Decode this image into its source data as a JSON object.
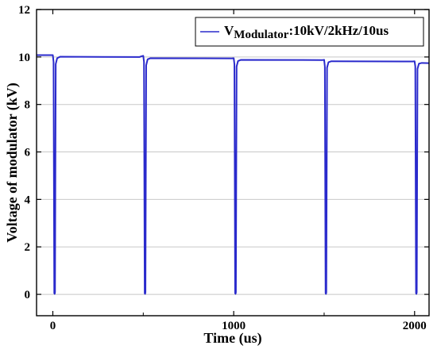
{
  "chart_data": {
    "type": "line",
    "title": "",
    "xlabel": "Time (us)",
    "ylabel": "Voltage of modulator (kV)",
    "xlim": [
      -90,
      2080
    ],
    "ylim": [
      -0.9,
      12
    ],
    "xticks": [
      0,
      1000,
      2000
    ],
    "yticks": [
      0,
      2,
      4,
      6,
      8,
      10,
      12
    ],
    "grid": "horizontal",
    "legend_position": "top-right",
    "legend": {
      "main": "V",
      "subscript": "Modulator",
      "suffix": ":10kV/2kHz/10us"
    },
    "colors": {
      "series": "#2a2acc",
      "grid": "#c8c8c8",
      "axis": "#000000"
    },
    "series": [
      {
        "name": "VModulator:10kV/2kHz/10us",
        "points": [
          [
            -90,
            10.08
          ],
          [
            0,
            10.08
          ],
          [
            4,
            9.8
          ],
          [
            8,
            0.05
          ],
          [
            10,
            0.02
          ],
          [
            12,
            0.08
          ],
          [
            16,
            9.7
          ],
          [
            24,
            9.95
          ],
          [
            40,
            10.01
          ],
          [
            480,
            10.0
          ],
          [
            490,
            10.03
          ],
          [
            500,
            10.05
          ],
          [
            504,
            9.8
          ],
          [
            508,
            0.05
          ],
          [
            510,
            0.02
          ],
          [
            512,
            0.08
          ],
          [
            516,
            9.65
          ],
          [
            524,
            9.9
          ],
          [
            540,
            9.95
          ],
          [
            990,
            9.94
          ],
          [
            1000,
            9.95
          ],
          [
            1004,
            9.7
          ],
          [
            1008,
            0.05
          ],
          [
            1010,
            0.02
          ],
          [
            1012,
            0.08
          ],
          [
            1016,
            9.6
          ],
          [
            1024,
            9.83
          ],
          [
            1040,
            9.88
          ],
          [
            1490,
            9.87
          ],
          [
            1500,
            9.88
          ],
          [
            1504,
            9.6
          ],
          [
            1508,
            0.05
          ],
          [
            1510,
            0.02
          ],
          [
            1512,
            0.08
          ],
          [
            1516,
            9.55
          ],
          [
            1524,
            9.78
          ],
          [
            1540,
            9.82
          ],
          [
            1990,
            9.81
          ],
          [
            2000,
            9.82
          ],
          [
            2004,
            9.6
          ],
          [
            2008,
            0.05
          ],
          [
            2010,
            0.02
          ],
          [
            2012,
            0.08
          ],
          [
            2016,
            9.5
          ],
          [
            2024,
            9.72
          ],
          [
            2040,
            9.75
          ],
          [
            2080,
            9.74
          ]
        ]
      }
    ]
  }
}
